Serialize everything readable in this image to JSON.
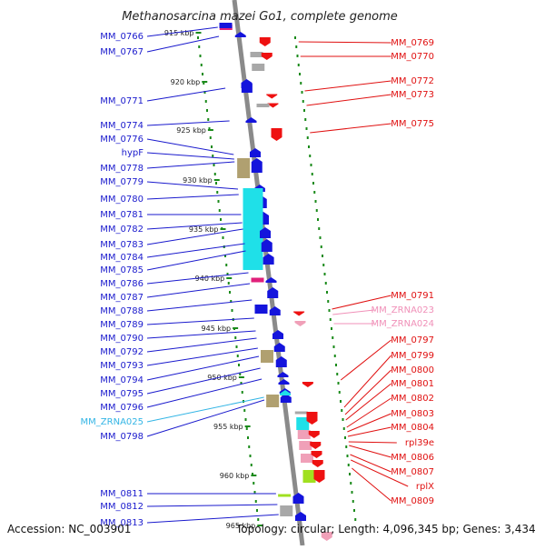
{
  "title": "Methanosarcina mazei Go1, complete genome",
  "accession": "Accession: NC_003901",
  "topology": "Topology: circular; Length: 4,096,345 bp; Genes: 3,434",
  "colors": {
    "backbone": "#8a8a8a",
    "label_left": "#1a1acd",
    "label_right": "#e01010",
    "label_rna_left": "#33b5e5",
    "label_rna_right": "#f090b8",
    "gene_blue": "#1414dc",
    "gene_red": "#ee1111",
    "gene_cyan": "#1fe0e8",
    "gene_olive": "#b0a070",
    "gene_gray": "#a8a8a8",
    "gene_pink": "#f0a0b8",
    "gene_green": "#a0e020",
    "gene_magenta": "#e0207a",
    "dot_green": "#1a8a1a"
  },
  "scale_ticks": [
    "915 kbp",
    "920 kbp",
    "925 kbp",
    "930 kbp",
    "935 kbp",
    "940 kbp",
    "945 kbp",
    "950 kbp",
    "955 kbp",
    "960 kbp",
    "965 kbp"
  ],
  "left_labels": [
    {
      "text": "MM_0766",
      "kind": "cds"
    },
    {
      "text": "MM_0767",
      "kind": "cds"
    },
    {
      "text": "MM_0771",
      "kind": "cds"
    },
    {
      "text": "MM_0774",
      "kind": "cds"
    },
    {
      "text": "MM_0776",
      "kind": "cds"
    },
    {
      "text": "hypF",
      "kind": "cds"
    },
    {
      "text": "MM_0778",
      "kind": "cds"
    },
    {
      "text": "MM_0779",
      "kind": "cds"
    },
    {
      "text": "MM_0780",
      "kind": "cds"
    },
    {
      "text": "MM_0781",
      "kind": "cds"
    },
    {
      "text": "MM_0782",
      "kind": "cds"
    },
    {
      "text": "MM_0783",
      "kind": "cds"
    },
    {
      "text": "MM_0784",
      "kind": "cds"
    },
    {
      "text": "MM_0785",
      "kind": "cds"
    },
    {
      "text": "MM_0786",
      "kind": "cds"
    },
    {
      "text": "MM_0787",
      "kind": "cds"
    },
    {
      "text": "MM_0788",
      "kind": "cds"
    },
    {
      "text": "MM_0789",
      "kind": "cds"
    },
    {
      "text": "MM_0790",
      "kind": "cds"
    },
    {
      "text": "MM_0792",
      "kind": "cds"
    },
    {
      "text": "MM_0793",
      "kind": "cds"
    },
    {
      "text": "MM_0794",
      "kind": "cds"
    },
    {
      "text": "MM_0795",
      "kind": "cds"
    },
    {
      "text": "MM_0796",
      "kind": "cds"
    },
    {
      "text": "MM_ZRNA025",
      "kind": "rna"
    },
    {
      "text": "MM_0798",
      "kind": "cds"
    },
    {
      "text": "MM_0811",
      "kind": "cds"
    },
    {
      "text": "MM_0812",
      "kind": "cds"
    },
    {
      "text": "MM_0813",
      "kind": "cds"
    }
  ],
  "right_labels": [
    {
      "text": "MM_0769",
      "kind": "cds"
    },
    {
      "text": "MM_0770",
      "kind": "cds"
    },
    {
      "text": "MM_0772",
      "kind": "cds"
    },
    {
      "text": "MM_0773",
      "kind": "cds"
    },
    {
      "text": "MM_0775",
      "kind": "cds"
    },
    {
      "text": "MM_0791",
      "kind": "cds"
    },
    {
      "text": "MM_ZRNA023",
      "kind": "rna"
    },
    {
      "text": "MM_ZRNA024",
      "kind": "rna"
    },
    {
      "text": "MM_0797",
      "kind": "cds"
    },
    {
      "text": "MM_0799",
      "kind": "cds"
    },
    {
      "text": "MM_0800",
      "kind": "cds"
    },
    {
      "text": "MM_0801",
      "kind": "cds"
    },
    {
      "text": "MM_0802",
      "kind": "cds"
    },
    {
      "text": "MM_0803",
      "kind": "cds"
    },
    {
      "text": "MM_0804",
      "kind": "cds"
    },
    {
      "text": "rpl39e",
      "kind": "cds"
    },
    {
      "text": "MM_0806",
      "kind": "cds"
    },
    {
      "text": "MM_0807",
      "kind": "cds"
    },
    {
      "text": "rplX",
      "kind": "cds"
    },
    {
      "text": "MM_0809",
      "kind": "cds"
    }
  ]
}
